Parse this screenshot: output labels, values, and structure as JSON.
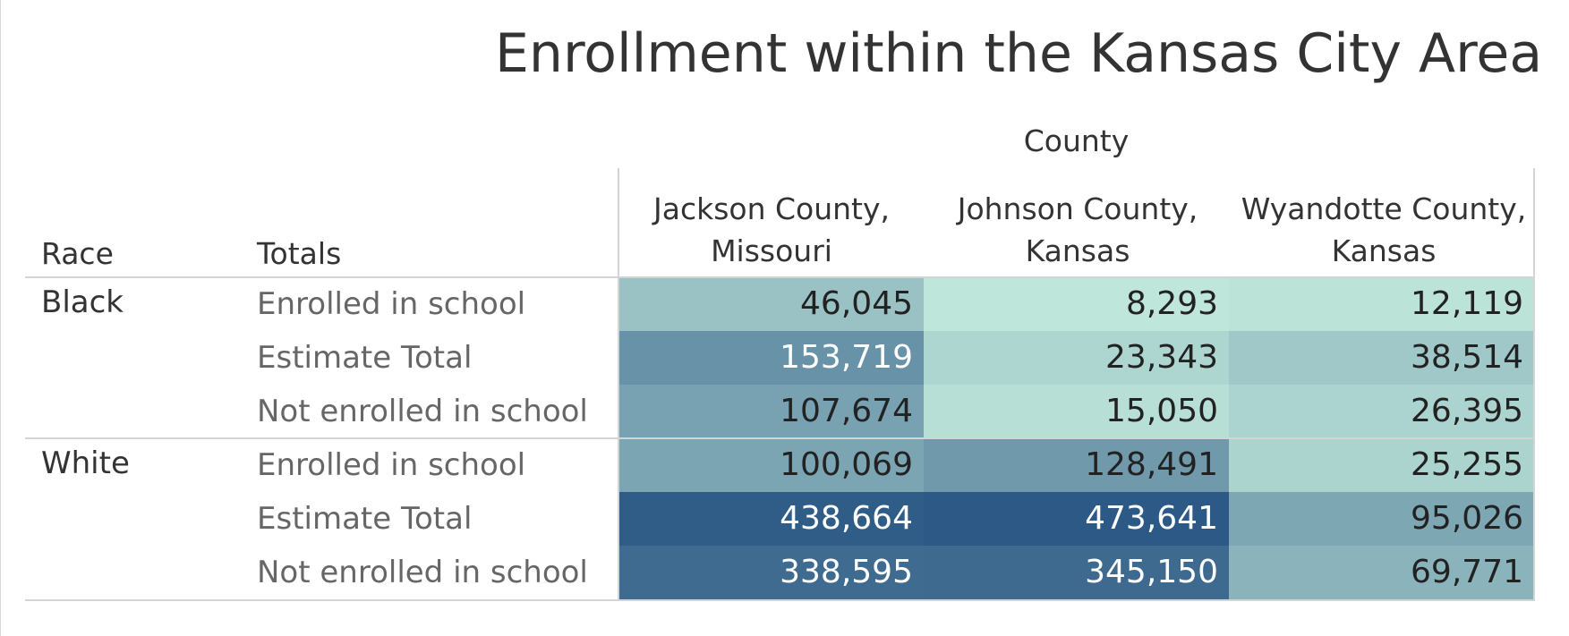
{
  "chart_data": {
    "type": "table",
    "title": "Enrollment within the Kansas City Area",
    "column_dimension": "County",
    "row_dimension_labels": [
      "Race",
      "Totals"
    ],
    "columns": [
      "Jackson County, Missouri",
      "Johnson County, Kansas",
      "Wyandotte County, Kansas"
    ],
    "column_labels": [
      [
        "Jackson County,",
        "Missouri"
      ],
      [
        "Johnson County,",
        "Kansas"
      ],
      [
        "Wyandotte County,",
        "Kansas"
      ]
    ],
    "groups": [
      {
        "race": "Black",
        "rows": [
          {
            "measure": "Enrolled in school",
            "values": [
              46045,
              8293,
              12119
            ],
            "labels": [
              "46,045",
              "8,293",
              "12,119"
            ]
          },
          {
            "measure": "Estimate Total",
            "values": [
              153719,
              23343,
              38514
            ],
            "labels": [
              "153,719",
              "23,343",
              "38,514"
            ]
          },
          {
            "measure": "Not enrolled in school",
            "values": [
              107674,
              15050,
              26395
            ],
            "labels": [
              "107,674",
              "15,050",
              "26,395"
            ]
          }
        ]
      },
      {
        "race": "White",
        "rows": [
          {
            "measure": "Enrolled in school",
            "values": [
              100069,
              128491,
              25255
            ],
            "labels": [
              "100,069",
              "128,491",
              "25,255"
            ]
          },
          {
            "measure": "Estimate Total",
            "values": [
              438664,
              473641,
              95026
            ],
            "labels": [
              "438,664",
              "473,641",
              "95,026"
            ]
          },
          {
            "measure": "Not enrolled in school",
            "values": [
              338595,
              345150,
              69771
            ],
            "labels": [
              "338,595",
              "345,150",
              "69,771"
            ]
          }
        ]
      }
    ],
    "color_scale": {
      "min_value": 8293,
      "max_value": 473641,
      "min_color": "#bfe6da",
      "max_color": "#2c5985"
    }
  }
}
